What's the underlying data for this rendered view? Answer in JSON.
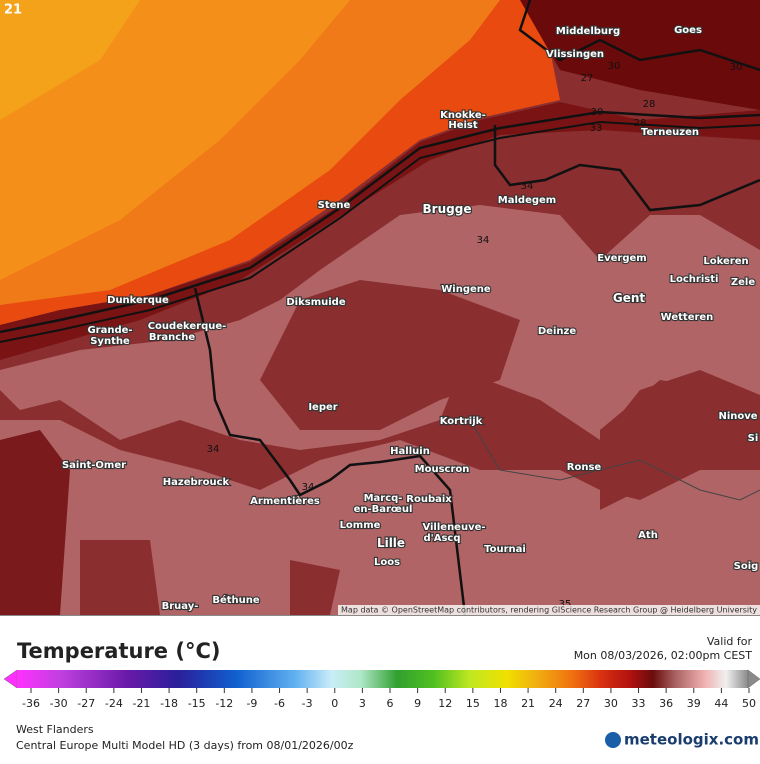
{
  "corner_label": "21",
  "cities": [
    {
      "lines": [
        "Middelburg"
      ]
    },
    {
      "lines": [
        "Goes"
      ]
    },
    {
      "lines": [
        "Vlissingen"
      ]
    },
    {
      "lines": [
        "Knokke-",
        "Heist"
      ]
    },
    {
      "lines": [
        "Terneuzen"
      ]
    },
    {
      "lines": [
        "Stene"
      ]
    },
    {
      "lines": [
        "Brugge"
      ]
    },
    {
      "lines": [
        "Maldegem"
      ]
    },
    {
      "lines": [
        "Evergem"
      ]
    },
    {
      "lines": [
        "Lokeren"
      ]
    },
    {
      "lines": [
        "Lochristi"
      ]
    },
    {
      "lines": [
        "Zele"
      ]
    },
    {
      "lines": [
        "Gent"
      ]
    },
    {
      "lines": [
        "Dunkerque"
      ]
    },
    {
      "lines": [
        "Diksmuide"
      ]
    },
    {
      "lines": [
        "Wingene"
      ]
    },
    {
      "lines": [
        "Grande-",
        "Synthe"
      ]
    },
    {
      "lines": [
        "Coudekerque-",
        "Branche"
      ]
    },
    {
      "lines": [
        "Wetteren"
      ]
    },
    {
      "lines": [
        "Deinze"
      ]
    },
    {
      "lines": [
        "Ieper"
      ]
    },
    {
      "lines": [
        "Kortrijk"
      ]
    },
    {
      "lines": [
        "Ninove"
      ]
    },
    {
      "lines": [
        "Si"
      ]
    },
    {
      "lines": [
        "Halluin"
      ]
    },
    {
      "lines": [
        "Saint-Omer"
      ]
    },
    {
      "lines": [
        "Mouscron"
      ]
    },
    {
      "lines": [
        "Ronse"
      ]
    },
    {
      "lines": [
        "Hazebrouck"
      ]
    },
    {
      "lines": [
        "Armentières"
      ]
    },
    {
      "lines": [
        "Marcq-",
        "en-Barœul"
      ]
    },
    {
      "lines": [
        "Roubaix"
      ]
    },
    {
      "lines": [
        "Lomme"
      ]
    },
    {
      "lines": [
        "Villeneuve-",
        "d'Ascq"
      ]
    },
    {
      "lines": [
        "Lille"
      ]
    },
    {
      "lines": [
        "Tournai"
      ]
    },
    {
      "lines": [
        "Ath"
      ]
    },
    {
      "lines": [
        "Loos"
      ]
    },
    {
      "lines": [
        "Soig"
      ]
    },
    {
      "lines": [
        "Béthune"
      ]
    },
    {
      "lines": [
        "Bruay-"
      ]
    }
  ],
  "contour_labels": [
    "34",
    "34",
    "34",
    "34",
    "27",
    "30",
    "28",
    "30",
    "33",
    "28",
    "35",
    "30"
  ],
  "attribution": "Map data © OpenStreetMap contributors, rendering GIScience Research Group @ Heidelberg University",
  "title": "Temperature (°C)",
  "valid_label": "Valid for",
  "valid_time": "Mon 08/03/2026, 02:00pm CEST",
  "colorbar_ticks": [
    -36,
    -30,
    -27,
    -24,
    -21,
    -18,
    -15,
    -12,
    -9,
    -6,
    -3,
    0,
    3,
    6,
    9,
    12,
    15,
    18,
    21,
    24,
    27,
    30,
    33,
    36,
    39,
    44,
    50
  ],
  "region": "West Flanders",
  "model": "Central Europe Multi Model HD (3 days) from  08/01/2026/00z",
  "brand": "meteologix.com"
}
